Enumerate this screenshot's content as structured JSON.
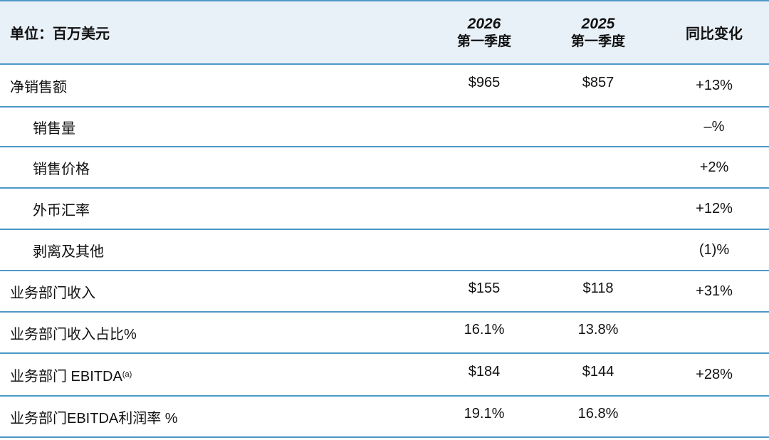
{
  "header": {
    "unit_label": "单位：百万美元",
    "col_2026_year": "2026",
    "col_2026_period": "第一季度",
    "col_2025_year": "2025",
    "col_2025_period": "第一季度",
    "col_yoy": "同比变化"
  },
  "rows": [
    {
      "label": "净销售额",
      "v2026": "$965",
      "v2025": "$857",
      "yoy": "+13%"
    },
    {
      "label": "销售量",
      "v2026": "",
      "v2025": "",
      "yoy": "–%"
    },
    {
      "label": "销售价格",
      "v2026": "",
      "v2025": "",
      "yoy": "+2%"
    },
    {
      "label": "外币汇率",
      "v2026": "",
      "v2025": "",
      "yoy": "+12%"
    },
    {
      "label": "剥离及其他",
      "v2026": "",
      "v2025": "",
      "yoy": "(1)%"
    },
    {
      "label": "业务部门收入",
      "v2026": "$155",
      "v2025": "$118",
      "yoy": "+31%"
    },
    {
      "label": "业务部门收入占比%",
      "v2026": "16.1%",
      "v2025": "13.8%",
      "yoy": ""
    },
    {
      "label": "业务部门 EBITDA",
      "label_sup": "(a)",
      "v2026": "$184",
      "v2025": "$144",
      "yoy": "+28%"
    },
    {
      "label": "业务部门EBITDA利润率 %",
      "v2026": "19.1%",
      "v2025": "16.8%",
      "yoy": ""
    }
  ],
  "colors": {
    "rule": "#4d98c7",
    "header_bg": "#e8f0f8"
  }
}
